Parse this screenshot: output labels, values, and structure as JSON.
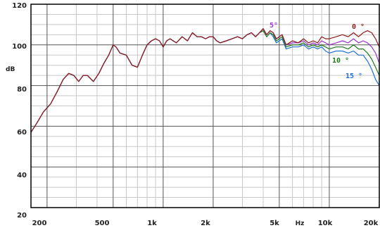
{
  "chart_data": {
    "type": "line",
    "title": "",
    "xlabel": "Hz",
    "ylabel": "dB",
    "xscale": "log",
    "xlim": [
      160,
      20000
    ],
    "ylim": [
      20,
      120
    ],
    "grid": true,
    "x_tick_labels": [
      "200",
      "500",
      "1k",
      "2k",
      "5k",
      "10k",
      "20k"
    ],
    "y_tick_labels": [
      "20",
      "40",
      "60",
      "80",
      "100",
      "120"
    ],
    "annotations": [
      {
        "text": "0 °",
        "color": "#8b1a1a"
      },
      {
        "text": "5°",
        "color": "#9932cc"
      },
      {
        "text": "10 °",
        "color": "#1e7a1e"
      },
      {
        "text": "15 °",
        "color": "#1f6fd1"
      }
    ],
    "series": [
      {
        "name": "0 °",
        "color": "#8b1a1a",
        "x": [
          160,
          175,
          190,
          210,
          230,
          250,
          270,
          290,
          310,
          330,
          350,
          380,
          410,
          440,
          470,
          500,
          520,
          550,
          600,
          650,
          700,
          750,
          800,
          850,
          900,
          950,
          1000,
          1050,
          1100,
          1200,
          1300,
          1400,
          1500,
          1600,
          1700,
          1800,
          1900,
          2000,
          2100,
          2200,
          2400,
          2600,
          2800,
          3000,
          3200,
          3400,
          3600,
          3800,
          4000,
          4200,
          4400,
          4600,
          4800,
          5000,
          5200,
          5500,
          6000,
          6500,
          7000,
          7500,
          8000,
          8500,
          9000,
          9500,
          10000,
          11000,
          12000,
          13000,
          14000,
          15000,
          16000,
          17000,
          18000,
          19000,
          20000
        ],
        "y": [
          57,
          62,
          67,
          71,
          77,
          83,
          86,
          85,
          82,
          85,
          85,
          82,
          86,
          91,
          95,
          100,
          99,
          96,
          95,
          90,
          89,
          95,
          100,
          102,
          103,
          102,
          99,
          102,
          103,
          101,
          104,
          102,
          106,
          104,
          104,
          103,
          104,
          104,
          102,
          101,
          102,
          103,
          104,
          103,
          105,
          106,
          104,
          106,
          108,
          105,
          107,
          106,
          103,
          104,
          105,
          100,
          102,
          101,
          103,
          101,
          102,
          101,
          104,
          103,
          103,
          104,
          105,
          104,
          106,
          104,
          106,
          107,
          106,
          103,
          99
        ]
      },
      {
        "name": "5°",
        "color": "#9932cc",
        "x": [
          160,
          175,
          190,
          210,
          230,
          250,
          270,
          290,
          310,
          330,
          350,
          380,
          410,
          440,
          470,
          500,
          520,
          550,
          600,
          650,
          700,
          750,
          800,
          850,
          900,
          950,
          1000,
          1050,
          1100,
          1200,
          1300,
          1400,
          1500,
          1600,
          1700,
          1800,
          1900,
          2000,
          2100,
          2200,
          2400,
          2600,
          2800,
          3000,
          3200,
          3400,
          3600,
          3800,
          4000,
          4200,
          4400,
          4600,
          4800,
          5000,
          5200,
          5500,
          6000,
          6500,
          7000,
          7500,
          8000,
          8500,
          9000,
          9500,
          10000,
          11000,
          12000,
          13000,
          14000,
          15000,
          16000,
          17000,
          18000,
          19000,
          20000
        ],
        "y": [
          57,
          62,
          67,
          71,
          77,
          83,
          86,
          85,
          82,
          85,
          85,
          82,
          86,
          91,
          95,
          100,
          99,
          96,
          95,
          90,
          89,
          95,
          100,
          102,
          103,
          102,
          99,
          102,
          103,
          101,
          104,
          102,
          106,
          104,
          104,
          103,
          104,
          104,
          102,
          101,
          102,
          103,
          104,
          103,
          105,
          106,
          104,
          106,
          108,
          105,
          107,
          106,
          103,
          104,
          105,
          100,
          101,
          101,
          102,
          100,
          101,
          100,
          102,
          101,
          100,
          101,
          102,
          101,
          103,
          101,
          102,
          101,
          99,
          96,
          91
        ]
      },
      {
        "name": "10 °",
        "color": "#1e7a1e",
        "x": [
          160,
          175,
          190,
          210,
          230,
          250,
          270,
          290,
          310,
          330,
          350,
          380,
          410,
          440,
          470,
          500,
          520,
          550,
          600,
          650,
          700,
          750,
          800,
          850,
          900,
          950,
          1000,
          1050,
          1100,
          1200,
          1300,
          1400,
          1500,
          1600,
          1700,
          1800,
          1900,
          2000,
          2100,
          2200,
          2400,
          2600,
          2800,
          3000,
          3200,
          3400,
          3600,
          3800,
          4000,
          4200,
          4400,
          4600,
          4800,
          5000,
          5200,
          5500,
          6000,
          6500,
          7000,
          7500,
          8000,
          8500,
          9000,
          9500,
          10000,
          11000,
          12000,
          13000,
          14000,
          15000,
          16000,
          17000,
          18000,
          19000,
          20000
        ],
        "y": [
          57,
          62,
          67,
          71,
          77,
          83,
          86,
          85,
          82,
          85,
          85,
          82,
          86,
          91,
          95,
          100,
          99,
          96,
          95,
          90,
          89,
          95,
          100,
          102,
          103,
          102,
          99,
          102,
          103,
          101,
          104,
          102,
          106,
          104,
          104,
          103,
          104,
          104,
          102,
          101,
          102,
          103,
          104,
          103,
          105,
          106,
          104,
          106,
          107,
          104,
          106,
          105,
          102,
          103,
          104,
          99,
          100,
          100,
          101,
          99,
          100,
          99,
          100,
          99,
          98,
          99,
          99,
          98,
          100,
          98,
          98,
          96,
          93,
          89,
          85
        ]
      },
      {
        "name": "15 °",
        "color": "#1f6fd1",
        "x": [
          160,
          175,
          190,
          210,
          230,
          250,
          270,
          290,
          310,
          330,
          350,
          380,
          410,
          440,
          470,
          500,
          520,
          550,
          600,
          650,
          700,
          750,
          800,
          850,
          900,
          950,
          1000,
          1050,
          1100,
          1200,
          1300,
          1400,
          1500,
          1600,
          1700,
          1800,
          1900,
          2000,
          2100,
          2200,
          2400,
          2600,
          2800,
          3000,
          3200,
          3400,
          3600,
          3800,
          4000,
          4200,
          4400,
          4600,
          4800,
          5000,
          5200,
          5500,
          6000,
          6500,
          7000,
          7500,
          8000,
          8500,
          9000,
          9500,
          10000,
          11000,
          12000,
          13000,
          14000,
          15000,
          16000,
          17000,
          18000,
          19000,
          20000
        ],
        "y": [
          57,
          62,
          67,
          71,
          77,
          83,
          86,
          85,
          82,
          85,
          85,
          82,
          86,
          91,
          95,
          100,
          99,
          96,
          95,
          90,
          89,
          95,
          100,
          102,
          103,
          102,
          99,
          102,
          103,
          101,
          104,
          102,
          106,
          104,
          104,
          103,
          104,
          104,
          102,
          101,
          102,
          103,
          104,
          103,
          105,
          106,
          104,
          106,
          107,
          104,
          106,
          104,
          101,
          102,
          103,
          98,
          99,
          99,
          100,
          98,
          99,
          98,
          99,
          97,
          96,
          97,
          97,
          96,
          97,
          95,
          95,
          92,
          88,
          83,
          80
        ]
      }
    ]
  }
}
